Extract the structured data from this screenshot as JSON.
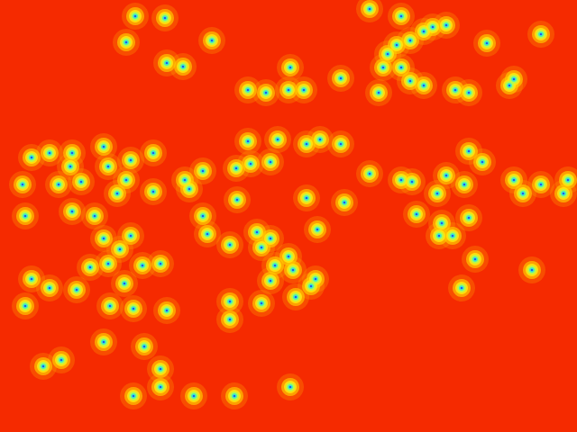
{
  "chart_data": {
    "type": "scatter",
    "color": "#f52a00",
    "tick_labels": false,
    "grid": false,
    "xlim": [
      0,
      640
    ],
    "ylim": [
      480,
      0
    ],
    "x": [
      150,
      183,
      235,
      140,
      185,
      203,
      322,
      378,
      275,
      295,
      320,
      337,
      420,
      455,
      470,
      480,
      495,
      440,
      430,
      445,
      425,
      470,
      455,
      505,
      520,
      540,
      565,
      570,
      600,
      410,
      445,
      35,
      55,
      80,
      115,
      25,
      65,
      90,
      78,
      120,
      145,
      170,
      130,
      140,
      170,
      105,
      80,
      28,
      115,
      145,
      100,
      120,
      133,
      158,
      178,
      85,
      35,
      55,
      28,
      138,
      122,
      148,
      185,
      205,
      210,
      225,
      262,
      275,
      308,
      340,
      355,
      378,
      300,
      278,
      263,
      225,
      255,
      285,
      300,
      290,
      320,
      305,
      325,
      300,
      328,
      345,
      350,
      290,
      255,
      255,
      230,
      340,
      352,
      382,
      410,
      445,
      457,
      485,
      495,
      462,
      490,
      502,
      520,
      487,
      520,
      535,
      515,
      580,
      570,
      600,
      625,
      630,
      527,
      590,
      512,
      115,
      160,
      178,
      178,
      148,
      48,
      68,
      322,
      215,
      260
    ],
    "values": [
      18,
      20,
      45,
      47,
      70,
      74,
      75,
      87,
      100,
      103,
      100,
      100,
      103,
      45,
      35,
      30,
      28,
      50,
      60,
      75,
      75,
      95,
      90,
      100,
      103,
      48,
      95,
      88,
      38,
      10,
      18,
      175,
      170,
      170,
      163,
      205,
      205,
      202,
      185,
      185,
      178,
      170,
      215,
      200,
      213,
      240,
      235,
      240,
      265,
      262,
      297,
      293,
      277,
      295,
      293,
      322,
      310,
      320,
      340,
      315,
      340,
      343,
      345,
      200,
      210,
      190,
      187,
      157,
      155,
      160,
      155,
      160,
      180,
      182,
      222,
      240,
      272,
      258,
      265,
      275,
      285,
      295,
      300,
      312,
      330,
      318,
      310,
      337,
      335,
      355,
      260,
      220,
      255,
      225,
      193,
      200,
      202,
      215,
      195,
      238,
      248,
      262,
      242,
      262,
      168,
      180,
      205,
      215,
      200,
      205,
      215,
      200,
      288,
      300,
      320,
      380,
      385,
      410,
      430,
      440,
      407,
      400,
      430,
      440,
      440
    ]
  }
}
